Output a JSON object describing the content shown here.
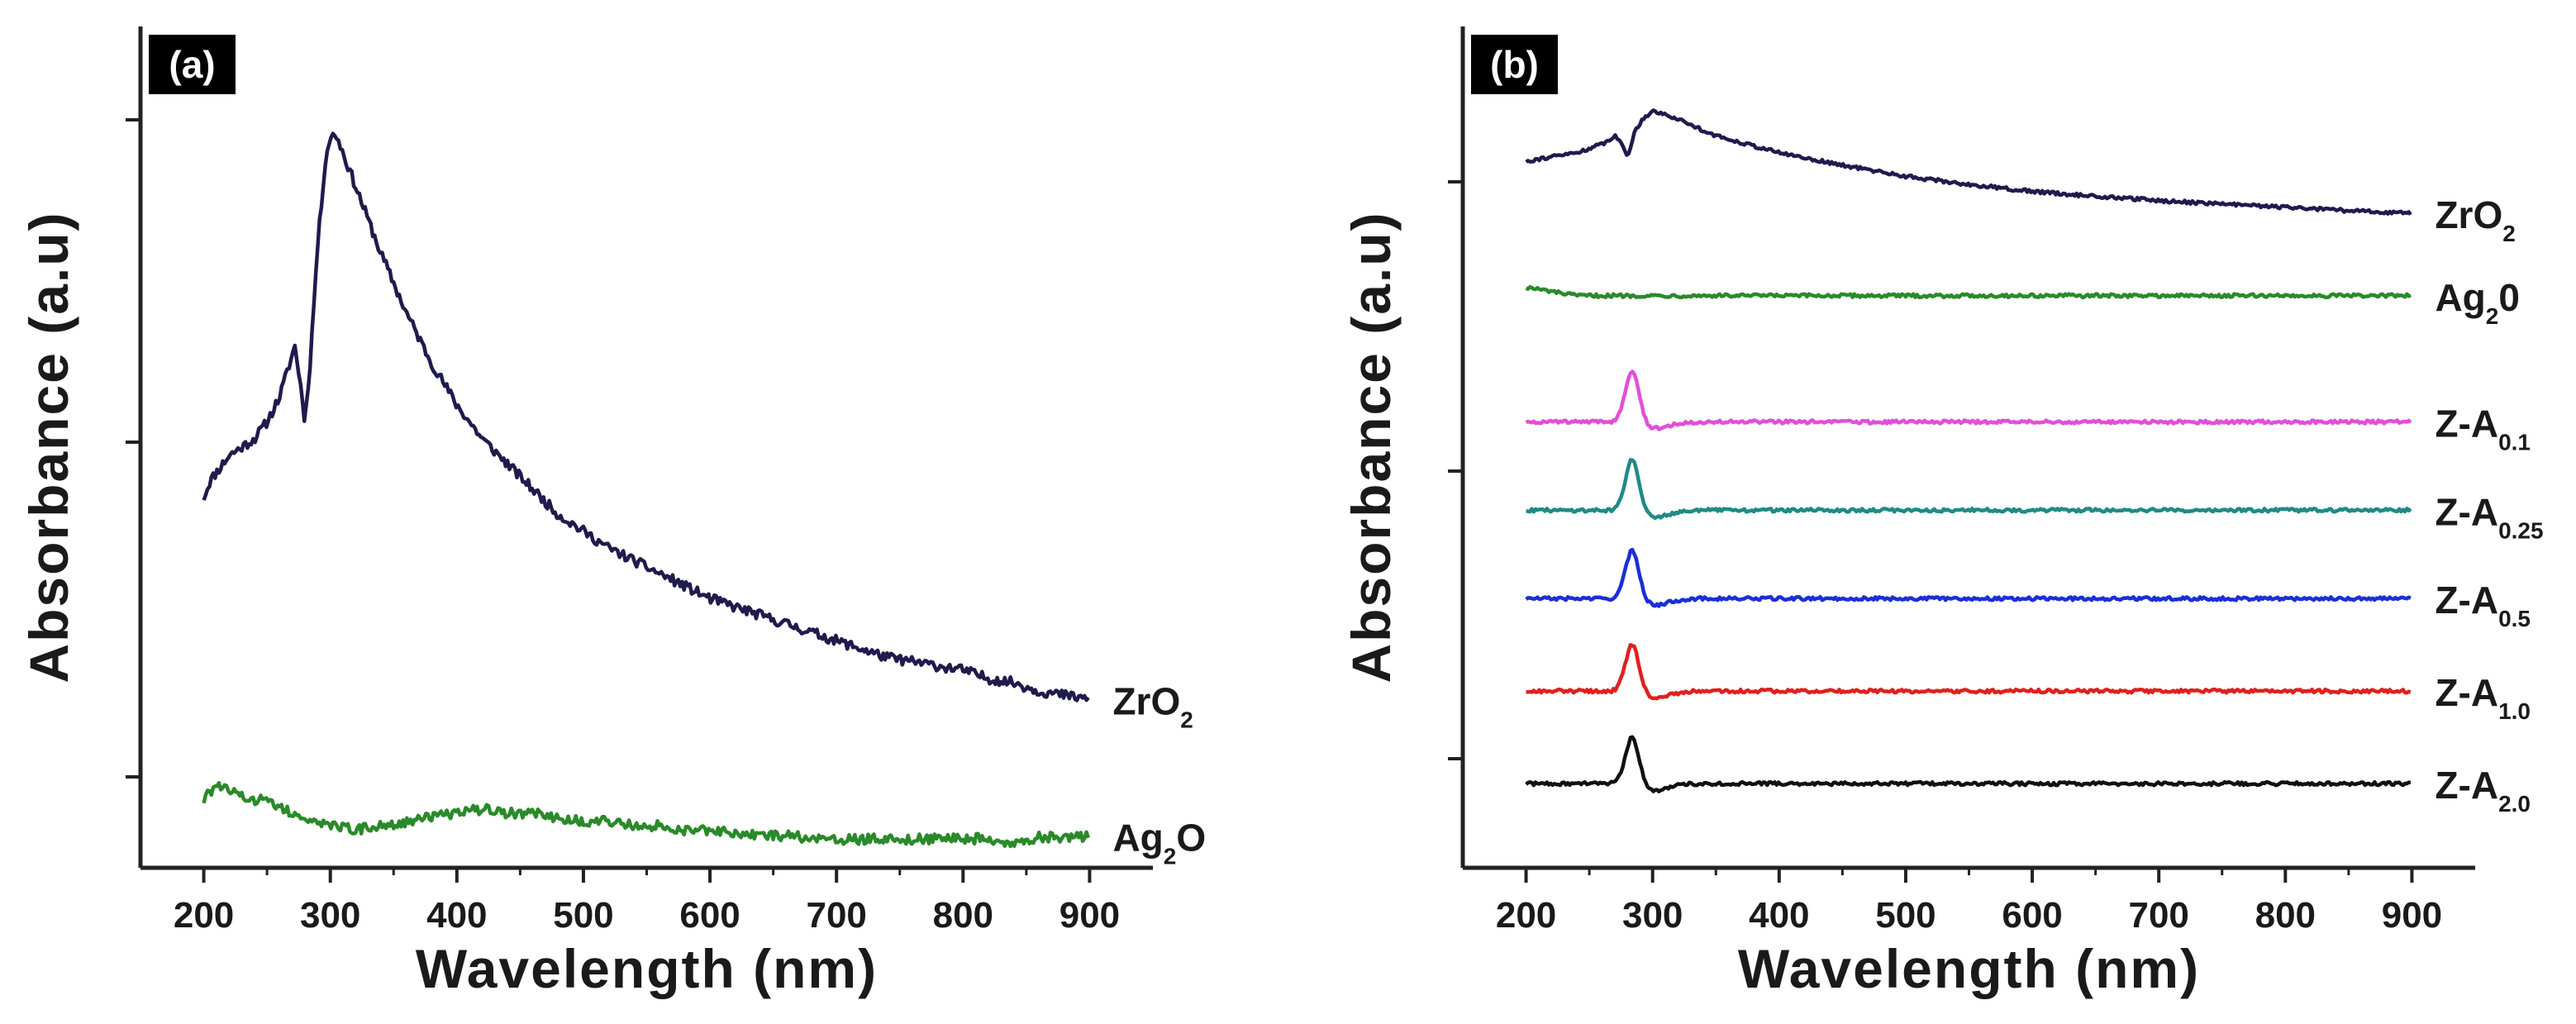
{
  "chart_data": [
    {
      "type": "line",
      "panel_label": "(a)",
      "xlabel": "Wavelength (nm)",
      "ylabel": "Absorbance (a.u)",
      "xlim": [
        150,
        950
      ],
      "ylim": [
        0,
        1.0
      ],
      "x_ticks": [
        "200",
        "300",
        "400",
        "500",
        "600",
        "700",
        "800",
        "900"
      ],
      "yticks_labeled": false,
      "series": [
        {
          "name": "ZrO2",
          "label_main": "ZrO",
          "label_sub": "2",
          "color": "#1f1b4d",
          "points": [
            [
              200,
              0.44
            ],
            [
              205,
              0.46
            ],
            [
              210,
              0.47
            ],
            [
              220,
              0.49
            ],
            [
              230,
              0.5
            ],
            [
              240,
              0.51
            ],
            [
              250,
              0.53
            ],
            [
              260,
              0.56
            ],
            [
              268,
              0.6
            ],
            [
              272,
              0.62
            ],
            [
              276,
              0.58
            ],
            [
              280,
              0.53
            ],
            [
              284,
              0.6
            ],
            [
              290,
              0.74
            ],
            [
              296,
              0.84
            ],
            [
              300,
              0.87
            ],
            [
              305,
              0.87
            ],
            [
              310,
              0.85
            ],
            [
              320,
              0.81
            ],
            [
              340,
              0.73
            ],
            [
              360,
              0.66
            ],
            [
              380,
              0.6
            ],
            [
              400,
              0.55
            ],
            [
              420,
              0.51
            ],
            [
              440,
              0.48
            ],
            [
              460,
              0.45
            ],
            [
              480,
              0.42
            ],
            [
              500,
              0.4
            ],
            [
              520,
              0.38
            ],
            [
              540,
              0.365
            ],
            [
              560,
              0.35
            ],
            [
              580,
              0.335
            ],
            [
              600,
              0.32
            ],
            [
              620,
              0.31
            ],
            [
              640,
              0.3
            ],
            [
              660,
              0.29
            ],
            [
              680,
              0.28
            ],
            [
              700,
              0.27
            ],
            [
              720,
              0.26
            ],
            [
              740,
              0.25
            ],
            [
              760,
              0.245
            ],
            [
              780,
              0.24
            ],
            [
              800,
              0.235
            ],
            [
              820,
              0.225
            ],
            [
              840,
              0.22
            ],
            [
              860,
              0.21
            ],
            [
              880,
              0.205
            ],
            [
              900,
              0.2
            ]
          ]
        },
        {
          "name": "Ag2O",
          "label_main": "Ag",
          "label_sub": "2",
          "label_tail": "O",
          "color": "#2a8a2a",
          "points": [
            [
              200,
              0.08
            ],
            [
              210,
              0.1
            ],
            [
              220,
              0.09
            ],
            [
              230,
              0.085
            ],
            [
              240,
              0.08
            ],
            [
              250,
              0.085
            ],
            [
              260,
              0.07
            ],
            [
              270,
              0.065
            ],
            [
              280,
              0.06
            ],
            [
              300,
              0.05
            ],
            [
              320,
              0.045
            ],
            [
              340,
              0.05
            ],
            [
              360,
              0.055
            ],
            [
              380,
              0.06
            ],
            [
              400,
              0.065
            ],
            [
              420,
              0.07
            ],
            [
              440,
              0.065
            ],
            [
              460,
              0.065
            ],
            [
              480,
              0.06
            ],
            [
              500,
              0.055
            ],
            [
              520,
              0.055
            ],
            [
              540,
              0.05
            ],
            [
              560,
              0.05
            ],
            [
              580,
              0.045
            ],
            [
              600,
              0.045
            ],
            [
              620,
              0.04
            ],
            [
              640,
              0.04
            ],
            [
              660,
              0.038
            ],
            [
              680,
              0.036
            ],
            [
              700,
              0.034
            ],
            [
              720,
              0.034
            ],
            [
              740,
              0.034
            ],
            [
              760,
              0.034
            ],
            [
              780,
              0.034
            ],
            [
              800,
              0.035
            ],
            [
              820,
              0.034
            ],
            [
              840,
              0.03
            ],
            [
              860,
              0.036
            ],
            [
              880,
              0.036
            ],
            [
              900,
              0.038
            ]
          ]
        }
      ]
    },
    {
      "type": "line",
      "panel_label": "(b)",
      "xlabel": "Wavelength (nm)",
      "ylabel": "Absorbance (a.u)",
      "xlim": [
        150,
        950
      ],
      "ylim": [
        0,
        1.0
      ],
      "x_ticks": [
        "200",
        "300",
        "400",
        "500",
        "600",
        "700",
        "800",
        "900"
      ],
      "yticks_labeled": false,
      "series": [
        {
          "name": "ZrO2",
          "label_main": "ZrO",
          "label_sub": "2",
          "color": "#1f1b4d",
          "kind": "broad",
          "points": [
            [
              200,
              0.84
            ],
            [
              220,
              0.845
            ],
            [
              240,
              0.85
            ],
            [
              260,
              0.86
            ],
            [
              270,
              0.87
            ],
            [
              276,
              0.86
            ],
            [
              280,
              0.845
            ],
            [
              286,
              0.875
            ],
            [
              292,
              0.89
            ],
            [
              300,
              0.9
            ],
            [
              320,
              0.89
            ],
            [
              350,
              0.87
            ],
            [
              400,
              0.85
            ],
            [
              450,
              0.835
            ],
            [
              500,
              0.822
            ],
            [
              550,
              0.812
            ],
            [
              600,
              0.804
            ],
            [
              650,
              0.798
            ],
            [
              700,
              0.793
            ],
            [
              750,
              0.789
            ],
            [
              800,
              0.785
            ],
            [
              850,
              0.781
            ],
            [
              900,
              0.778
            ]
          ]
        },
        {
          "name": "Ag20",
          "label_main": "Ag",
          "label_sub": "2",
          "label_tail": "0",
          "color": "#2a8a2a",
          "kind": "flat",
          "baseline": 0.68
        },
        {
          "name": "Z-A0.1",
          "label_main": "Z-A",
          "label_sub": "0.1",
          "color": "#e14fd8",
          "kind": "peak",
          "baseline": 0.53,
          "peak_height": 0.065
        },
        {
          "name": "Z-A0.25",
          "label_main": "Z-A",
          "label_sub": "0.25",
          "color": "#1f8a86",
          "kind": "peak",
          "baseline": 0.425,
          "peak_height": 0.063
        },
        {
          "name": "Z-A0.5",
          "label_main": "Z-A",
          "label_sub": "0.5",
          "color": "#1a2fd6",
          "kind": "peak",
          "baseline": 0.32,
          "peak_height": 0.06
        },
        {
          "name": "Z-A1.0",
          "label_main": "Z-A",
          "label_sub": "1.0",
          "color": "#e0201e",
          "kind": "peak",
          "baseline": 0.21,
          "peak_height": 0.058
        },
        {
          "name": "Z-A2.0",
          "label_main": "Z-A",
          "label_sub": "2.0",
          "color": "#111111",
          "kind": "peak",
          "baseline": 0.1,
          "peak_height": 0.058
        }
      ]
    }
  ]
}
